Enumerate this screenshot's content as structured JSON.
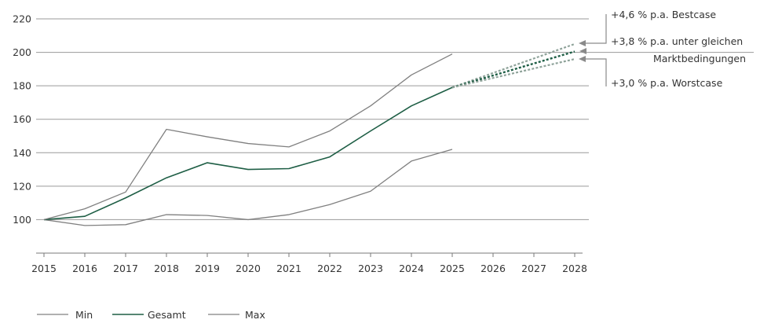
{
  "chart_data": {
    "type": "line",
    "title": "",
    "xlabel": "",
    "ylabel": "",
    "x": [
      2015,
      2016,
      2017,
      2018,
      2019,
      2020,
      2021,
      2022,
      2023,
      2024,
      2025
    ],
    "x_ticks": [
      "2015",
      "2016",
      "2017",
      "2018",
      "2019",
      "2020",
      "2021",
      "2022",
      "2023",
      "2024",
      "2025",
      "2026",
      "2027",
      "2028"
    ],
    "y_ticks": [
      "100",
      "120",
      "140",
      "160",
      "180",
      "200",
      "220"
    ],
    "xlim": [
      2015,
      2028
    ],
    "ylim": [
      80,
      220
    ],
    "grid": "horizontal",
    "legend": "bottom-left",
    "series": [
      {
        "name": "Min",
        "color": "#808080",
        "values": [
          100,
          96.5,
          97,
          103,
          102.5,
          100,
          103,
          109,
          117,
          135,
          142
        ]
      },
      {
        "name": "Gesamt",
        "color": "#1e5e45",
        "values": [
          100,
          102,
          113,
          125,
          134,
          130,
          130.5,
          137.5,
          153,
          168,
          179
        ]
      },
      {
        "name": "Max",
        "color": "#808080",
        "values": [
          100,
          106.5,
          116.5,
          154,
          149.5,
          145.5,
          143.5,
          153,
          168,
          186.5,
          199
        ]
      }
    ],
    "projections": [
      {
        "label": "+4,6 % p.a. Bestcase",
        "color": "#8fa39a",
        "x": [
          2025,
          2028
        ],
        "values": [
          179,
          205
        ]
      },
      {
        "label": "+3,8 % p.a. unter gleichen Marktbedingungen",
        "label_lines": [
          "+3,8 % p.a. unter gleichen",
          "Marktbedingungen"
        ],
        "color": "#1e5e45",
        "x": [
          2025,
          2028
        ],
        "values": [
          179,
          200.5
        ]
      },
      {
        "label": "+3,0 % p.a. Worstcase",
        "color": "#8fa39a",
        "x": [
          2025,
          2028
        ],
        "values": [
          179,
          196
        ]
      }
    ]
  }
}
